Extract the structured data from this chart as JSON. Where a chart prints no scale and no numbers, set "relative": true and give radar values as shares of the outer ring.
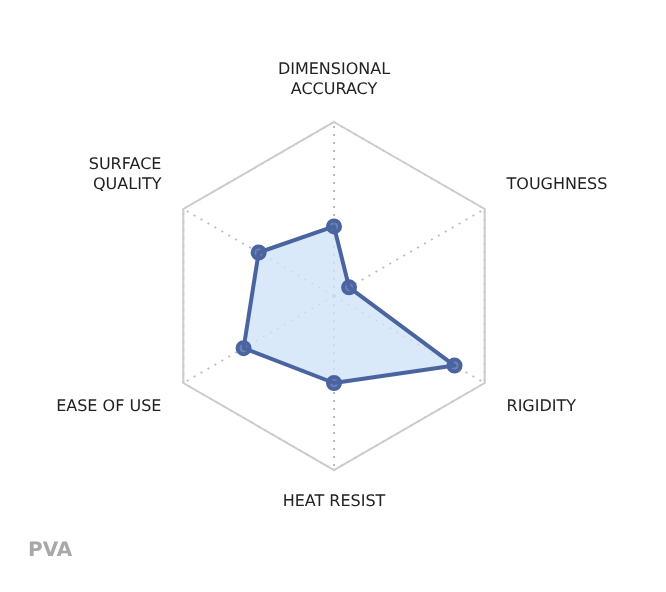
{
  "chart_data": {
    "type": "radar",
    "relative": true,
    "grid": true,
    "marker": "circle",
    "categories": [
      "DIMENSIONAL ACCURACY",
      "TOUGHNESS",
      "RIGIDITY",
      "HEAT RESIST",
      "EASE OF USE",
      "SURFACE QUALITY"
    ],
    "series": [
      {
        "color": "#4a64a0",
        "values": [
          0.4,
          0.1,
          0.8,
          0.5,
          0.6,
          0.5
        ]
      }
    ],
    "annotations": [
      "PVA"
    ]
  }
}
